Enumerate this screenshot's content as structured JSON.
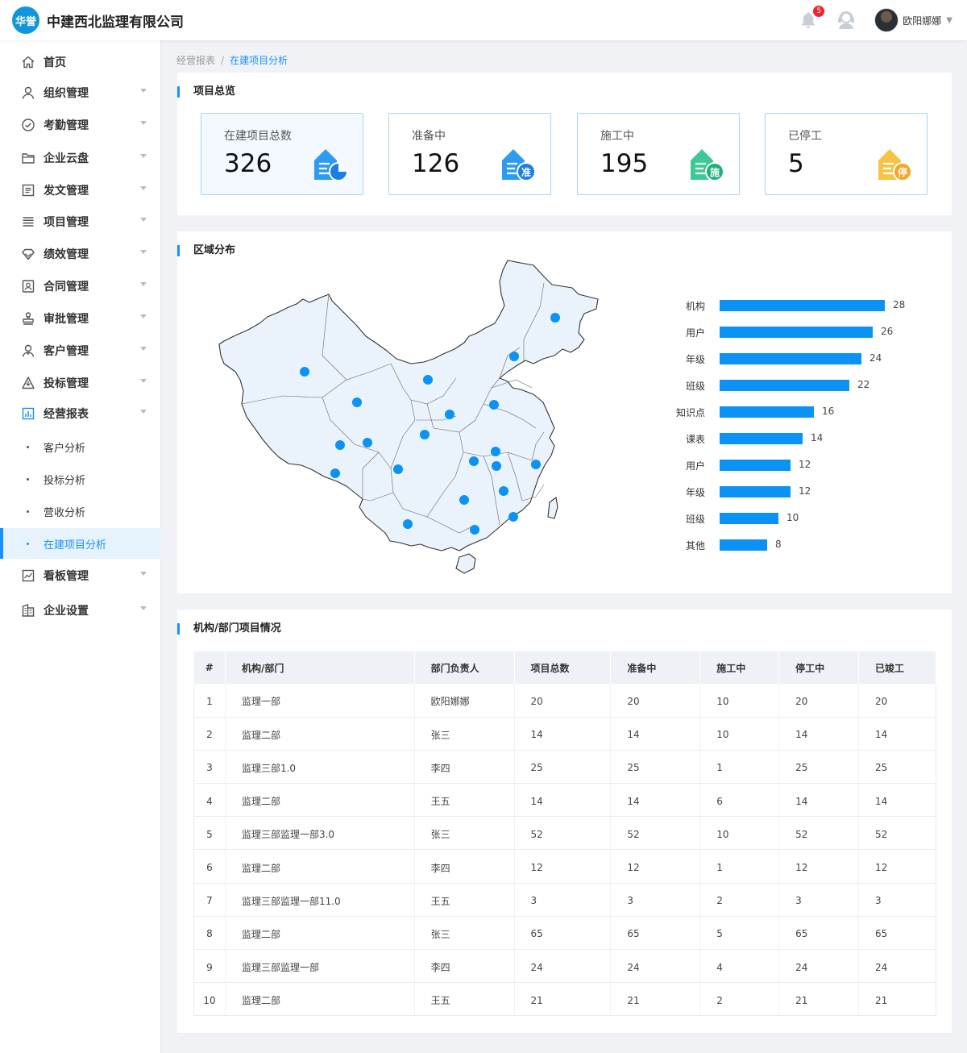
{
  "header": {
    "logo_text": "华誉",
    "company": "中建西北监理有限公司",
    "notifications": "5",
    "username": "欧阳娜娜"
  },
  "sidebar": {
    "items": [
      {
        "label": "首页",
        "icon": "home-icon",
        "has_arrow": false
      },
      {
        "label": "组织管理",
        "icon": "user-icon",
        "has_arrow": true
      },
      {
        "label": "考勤管理",
        "icon": "check-circle-icon",
        "has_arrow": true
      },
      {
        "label": "企业云盘",
        "icon": "folder-icon",
        "has_arrow": true
      },
      {
        "label": "发文管理",
        "icon": "document-icon",
        "has_arrow": true
      },
      {
        "label": "项目管理",
        "icon": "list-icon",
        "has_arrow": true
      },
      {
        "label": "绩效管理",
        "icon": "diamond-icon",
        "has_arrow": true
      },
      {
        "label": "合同管理",
        "icon": "contract-icon",
        "has_arrow": true
      },
      {
        "label": "审批管理",
        "icon": "stamp-icon",
        "has_arrow": true
      },
      {
        "label": "客户管理",
        "icon": "customer-icon",
        "has_arrow": true
      },
      {
        "label": "投标管理",
        "icon": "bid-icon",
        "has_arrow": true
      },
      {
        "label": "经营报表",
        "icon": "report-icon",
        "has_arrow": true
      },
      {
        "label": "看板管理",
        "icon": "dashboard-icon",
        "has_arrow": true
      },
      {
        "label": "企业设置",
        "icon": "building-icon",
        "has_arrow": true
      }
    ],
    "sub_items": [
      "客户分析",
      "投标分析",
      "营收分析",
      "在建项目分析"
    ]
  },
  "breadcrumb": {
    "parent": "经营报表",
    "separator": "/",
    "current": "在建项目分析"
  },
  "overview": {
    "title": "项目总览",
    "stats": [
      {
        "label": "在建项目总数",
        "value": "326",
        "badge": "",
        "color": "#2d9cf0"
      },
      {
        "label": "准备中",
        "value": "126",
        "badge": "准",
        "color": "#2d9cf0"
      },
      {
        "label": "施工中",
        "value": "195",
        "badge": "施",
        "color": "#3cc995"
      },
      {
        "label": "已停工",
        "value": "5",
        "badge": "停",
        "color": "#f7b731"
      }
    ]
  },
  "region": {
    "title": "区域分布",
    "chart_data": {
      "type": "bar",
      "orientation": "horizontal",
      "categories": [
        "机构",
        "用户",
        "年级",
        "班级",
        "知识点",
        "课表",
        "用户",
        "年级",
        "班级",
        "其他"
      ],
      "values": [
        28,
        26,
        24,
        22,
        16,
        14,
        12,
        12,
        10,
        8
      ],
      "color": "#0a93f4"
    }
  },
  "table": {
    "title": "机构/部门项目情况",
    "headers": [
      "#",
      "机构/部门",
      "部门负责人",
      "项目总数",
      "准备中",
      "施工中",
      "停工中",
      "已竣工"
    ],
    "rows": [
      [
        "1",
        "监理一部",
        "欧阳娜娜",
        "20",
        "20",
        "10",
        "20",
        "20"
      ],
      [
        "2",
        "监理二部",
        "张三",
        "14",
        "14",
        "10",
        "14",
        "14"
      ],
      [
        "3",
        "监理三部1.0",
        "李四",
        "25",
        "25",
        "1",
        "25",
        "25"
      ],
      [
        "4",
        "监理二部",
        "王五",
        "14",
        "14",
        "6",
        "14",
        "14"
      ],
      [
        "5",
        "监理三部监理一部3.0",
        "张三",
        "52",
        "52",
        "10",
        "52",
        "52"
      ],
      [
        "6",
        "监理二部",
        "李四",
        "12",
        "12",
        "1",
        "12",
        "12"
      ],
      [
        "7",
        "监理三部监理一部11.0",
        "王五",
        "3",
        "3",
        "2",
        "3",
        "3"
      ],
      [
        "8",
        "监理二部",
        "张三",
        "65",
        "65",
        "5",
        "65",
        "65"
      ],
      [
        "9",
        "监理三部监理一部",
        "李四",
        "24",
        "24",
        "4",
        "24",
        "24"
      ],
      [
        "10",
        "监理二部",
        "王五",
        "21",
        "21",
        "2",
        "21",
        "21"
      ]
    ]
  }
}
